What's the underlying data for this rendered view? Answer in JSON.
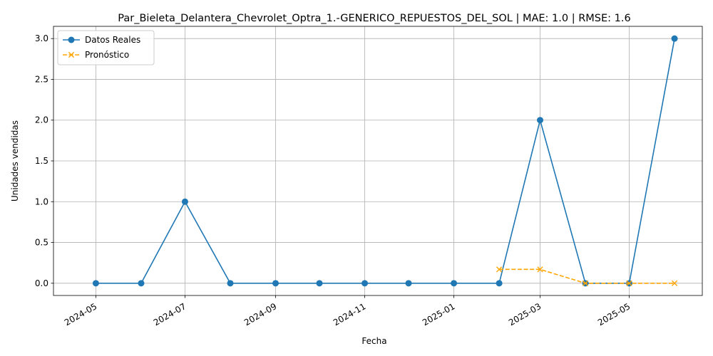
{
  "chart_data": {
    "type": "line",
    "title": "Par_Bieleta_Delantera_Chevrolet_Optra_1.-GENERICO_REPUESTOS_DEL_SOL | MAE: 1.0 | RMSE: 1.6",
    "xlabel": "Fecha",
    "ylabel": "Unidades vendidas",
    "ylim": [
      -0.15,
      3.15
    ],
    "xlim": [
      "2024-04-02",
      "2025-06-20"
    ],
    "grid": true,
    "legend_position": "top-left",
    "x_ticks": [
      "2024-05",
      "2024-07",
      "2024-09",
      "2024-11",
      "2025-01",
      "2025-03",
      "2025-05"
    ],
    "y_ticks": [
      "0.0",
      "0.5",
      "1.0",
      "1.5",
      "2.0",
      "2.5",
      "3.0"
    ],
    "series": [
      {
        "name": "Datos Reales",
        "color": "#1f77b4",
        "marker": "circle",
        "linestyle": "solid",
        "points": [
          {
            "x": "2024-05-01",
            "y": 0
          },
          {
            "x": "2024-06-01",
            "y": 0
          },
          {
            "x": "2024-07-01",
            "y": 1
          },
          {
            "x": "2024-08-01",
            "y": 0
          },
          {
            "x": "2024-09-01",
            "y": 0
          },
          {
            "x": "2024-10-01",
            "y": 0
          },
          {
            "x": "2024-11-01",
            "y": 0
          },
          {
            "x": "2024-12-01",
            "y": 0
          },
          {
            "x": "2025-01-01",
            "y": 0
          },
          {
            "x": "2025-02-01",
            "y": 0
          },
          {
            "x": "2025-03-01",
            "y": 2
          },
          {
            "x": "2025-04-01",
            "y": 0
          },
          {
            "x": "2025-05-01",
            "y": 0
          },
          {
            "x": "2025-06-01",
            "y": 3
          }
        ]
      },
      {
        "name": "Pronóstico",
        "color": "#ffa500",
        "marker": "x",
        "linestyle": "dashed",
        "points": [
          {
            "x": "2025-02-01",
            "y": 0.17
          },
          {
            "x": "2025-03-01",
            "y": 0.17
          },
          {
            "x": "2025-04-01",
            "y": 0
          },
          {
            "x": "2025-05-01",
            "y": 0
          },
          {
            "x": "2025-06-01",
            "y": 0
          }
        ]
      }
    ]
  }
}
